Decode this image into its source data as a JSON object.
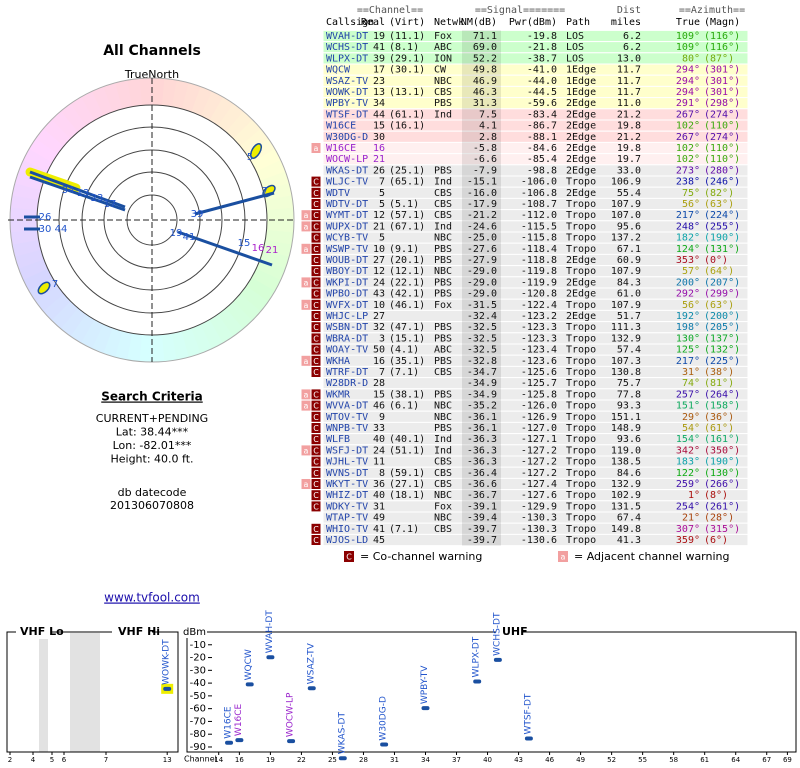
{
  "radar": {
    "title": "All Channels",
    "north": "TrueNorth",
    "north_mark": "N",
    "labels": [
      "5",
      "7",
      "34",
      "13",
      "23",
      "17",
      "26",
      "30",
      "44",
      "39",
      "19",
      "41",
      "15",
      "16",
      "21",
      "7"
    ]
  },
  "search": {
    "title": "Search Criteria",
    "lines": [
      "CURRENT+PENDING",
      "Lat: 38.44***",
      "Lon: -82.01***",
      "Height: 40.0 ft."
    ],
    "datecode_label": "db datecode",
    "datecode": "201306070808"
  },
  "table": {
    "group_headers": [
      "==Channel==",
      "==Signal=======",
      "Dist",
      "==Azimuth=="
    ],
    "headers": [
      "Callsign",
      "Real",
      "(Virt)",
      "Netwk",
      "NM(dB)",
      "Pwr(dBm)",
      "Path",
      "miles",
      "True",
      "(Magn)"
    ],
    "rows": [
      {
        "cells": [
          "WVAH-DT",
          "19",
          "(11.1)",
          "Fox",
          "71.1",
          "-19.8",
          "LOS",
          "6.2",
          "109°",
          "(116°)"
        ]
      },
      {
        "cells": [
          "WCHS-DT",
          "41",
          "(8.1)",
          "ABC",
          "69.0",
          "-21.8",
          "LOS",
          "6.2",
          "109°",
          "(116°)"
        ]
      },
      {
        "cells": [
          "WLPX-DT",
          "39",
          "(29.1)",
          "ION",
          "52.2",
          "-38.7",
          "LOS",
          "13.0",
          "80°",
          "(87°)"
        ]
      },
      {
        "cells": [
          "WQCW",
          "17",
          "(30.1)",
          "CW",
          "49.8",
          "-41.0",
          "1Edge",
          "11.7",
          "294°",
          "(301°)"
        ]
      },
      {
        "cells": [
          "WSAZ-TV",
          "23",
          null,
          "NBC",
          "46.9",
          "-44.0",
          "1Edge",
          "11.7",
          "294°",
          "(301°)"
        ]
      },
      {
        "cells": [
          "WOWK-DT",
          "13",
          "(13.1)",
          "CBS",
          "46.3",
          "-44.5",
          "1Edge",
          "11.7",
          "294°",
          "(301°)"
        ]
      },
      {
        "cells": [
          "WPBY-TV",
          "34",
          null,
          "PBS",
          "31.3",
          "-59.6",
          "2Edge",
          "11.0",
          "291°",
          "(298°)"
        ]
      },
      {
        "cells": [
          "WTSF-DT",
          "44",
          "(61.1)",
          "Ind",
          "7.5",
          "-83.4",
          "2Edge",
          "21.2",
          "267°",
          "(274°)"
        ]
      },
      {
        "cells": [
          "W16CE",
          "15",
          "(16.1)",
          null,
          "4.1",
          "-86.7",
          "2Edge",
          "19.8",
          "102°",
          "(110°)"
        ]
      },
      {
        "cells": [
          "W30DG-D",
          "30",
          null,
          null,
          "2.8",
          "-88.1",
          "2Edge",
          "21.2",
          "267°",
          "(274°)"
        ]
      },
      {
        "warn": [
          "a"
        ],
        "cells": [
          "W16CE",
          "16",
          null,
          null,
          "-5.8",
          "-84.6",
          "2Edge",
          "19.8",
          "102°",
          "(110°)"
        ]
      },
      {
        "cells": [
          "WOCW-LP",
          "21",
          null,
          null,
          "-6.6",
          "-85.4",
          "2Edge",
          "19.7",
          "102°",
          "(110°)"
        ]
      },
      {
        "cells": [
          "WKAS-DT",
          "26",
          "(25.1)",
          "PBS",
          "-7.9",
          "-98.8",
          "2Edge",
          "33.0",
          "273°",
          "(280°)"
        ]
      },
      {
        "warn": [
          "C"
        ],
        "cells": [
          "WLJC-TV",
          "7",
          "(65.1)",
          "Ind",
          "-15.1",
          "-106.0",
          "Tropo",
          "106.9",
          "238°",
          "(246°)"
        ]
      },
      {
        "warn": [
          "C"
        ],
        "cells": [
          "WDTV",
          "5",
          null,
          "CBS",
          "-16.0",
          "-106.8",
          "2Edge",
          "55.4",
          "75°",
          "(82°)"
        ]
      },
      {
        "warn": [
          "C"
        ],
        "cells": [
          "WDTV-DT",
          "5",
          "(5.1)",
          "CBS",
          "-17.9",
          "-108.7",
          "Tropo",
          "107.9",
          "56°",
          "(63°)"
        ]
      },
      {
        "warn": [
          "a",
          "C"
        ],
        "cells": [
          "WYMT-DT",
          "12",
          "(57.1)",
          "CBS",
          "-21.2",
          "-112.0",
          "Tropo",
          "107.0",
          "217°",
          "(224°)"
        ]
      },
      {
        "warn": [
          "a",
          "C"
        ],
        "cells": [
          "WUPX-DT",
          "21",
          "(67.1)",
          "Ind",
          "-24.6",
          "-115.5",
          "Tropo",
          "95.6",
          "248°",
          "(255°)"
        ]
      },
      {
        "warn": [
          "C"
        ],
        "cells": [
          "WCYB-TV",
          "5",
          null,
          "NBC",
          "-25.0",
          "-115.8",
          "Tropo",
          "137.2",
          "182°",
          "(190°)"
        ]
      },
      {
        "warn": [
          "a",
          "C"
        ],
        "cells": [
          "WSWP-TV",
          "10",
          "(9.1)",
          "PBS",
          "-27.6",
          "-118.4",
          "Tropo",
          "67.1",
          "124°",
          "(131°)"
        ]
      },
      {
        "warn": [
          "C"
        ],
        "cells": [
          "WOUB-DT",
          "27",
          "(20.1)",
          "PBS",
          "-27.9",
          "-118.8",
          "2Edge",
          "60.9",
          "353°",
          "(0°)"
        ]
      },
      {
        "warn": [
          "C"
        ],
        "cells": [
          "WBOY-DT",
          "12",
          "(12.1)",
          "NBC",
          "-29.0",
          "-119.8",
          "Tropo",
          "107.9",
          "57°",
          "(64°)"
        ]
      },
      {
        "warn": [
          "a",
          "C"
        ],
        "cells": [
          "WKPI-DT",
          "24",
          "(22.1)",
          "PBS",
          "-29.0",
          "-119.9",
          "2Edge",
          "84.3",
          "200°",
          "(207°)"
        ]
      },
      {
        "warn": [
          "C"
        ],
        "cells": [
          "WPBO-DT",
          "43",
          "(42.1)",
          "PBS",
          "-29.0",
          "-120.8",
          "2Edge",
          "61.0",
          "292°",
          "(299°)"
        ]
      },
      {
        "warn": [
          "a",
          "C"
        ],
        "cells": [
          "WVFX-DT",
          "10",
          "(46.1)",
          "Fox",
          "-31.5",
          "-122.4",
          "Tropo",
          "107.9",
          "56°",
          "(63°)"
        ]
      },
      {
        "warn": [
          "C"
        ],
        "cells": [
          "WHJC-LP",
          "27",
          null,
          null,
          "-32.4",
          "-123.2",
          "2Edge",
          "51.7",
          "192°",
          "(200°)"
        ]
      },
      {
        "warn": [
          "C"
        ],
        "cells": [
          "WSBN-DT",
          "32",
          "(47.1)",
          "PBS",
          "-32.5",
          "-123.3",
          "Tropo",
          "111.3",
          "198°",
          "(205°)"
        ]
      },
      {
        "warn": [
          "C"
        ],
        "cells": [
          "WBRA-DT",
          "3",
          "(15.1)",
          "PBS",
          "-32.5",
          "-123.3",
          "Tropo",
          "132.9",
          "130°",
          "(137°)"
        ]
      },
      {
        "warn": [
          "C"
        ],
        "cells": [
          "WOAY-TV",
          "50",
          "(4.1)",
          "ABC",
          "-32.5",
          "-123.4",
          "Tropo",
          "57.4",
          "125°",
          "(132°)"
        ]
      },
      {
        "warn": [
          "a",
          "C"
        ],
        "cells": [
          "WKHA",
          "16",
          "(35.1)",
          "PBS",
          "-32.8",
          "-123.6",
          "Tropo",
          "107.3",
          "217°",
          "(225°)"
        ]
      },
      {
        "warn": [
          "C"
        ],
        "cells": [
          "WTRF-DT",
          "7",
          "(7.1)",
          "CBS",
          "-34.7",
          "-125.6",
          "Tropo",
          "130.8",
          "31°",
          "(38°)"
        ]
      },
      {
        "cells": [
          "W28DR-D",
          "28",
          null,
          null,
          "-34.9",
          "-125.7",
          "Tropo",
          "75.7",
          "74°",
          "(81°)"
        ]
      },
      {
        "warn": [
          "a",
          "C"
        ],
        "cells": [
          "WKMR",
          "15",
          "(38.1)",
          "PBS",
          "-34.9",
          "-125.8",
          "Tropo",
          "77.8",
          "257°",
          "(264°)"
        ]
      },
      {
        "warn": [
          "a",
          "C"
        ],
        "cells": [
          "WVVA-DT",
          "46",
          "(6.1)",
          "NBC",
          "-35.2",
          "-126.0",
          "Tropo",
          "93.3",
          "151°",
          "(158°)"
        ]
      },
      {
        "warn": [
          "C"
        ],
        "cells": [
          "WTOV-TV",
          "9",
          null,
          "NBC",
          "-36.1",
          "-126.9",
          "Tropo",
          "151.1",
          "29°",
          "(36°)"
        ]
      },
      {
        "warn": [
          "C"
        ],
        "cells": [
          "WNPB-TV",
          "33",
          null,
          "PBS",
          "-36.1",
          "-127.0",
          "Tropo",
          "148.9",
          "54°",
          "(61°)"
        ]
      },
      {
        "warn": [
          "C"
        ],
        "cells": [
          "WLFB",
          "40",
          "(40.1)",
          "Ind",
          "-36.3",
          "-127.1",
          "Tropo",
          "93.6",
          "154°",
          "(161°)"
        ]
      },
      {
        "warn": [
          "a",
          "C"
        ],
        "cells": [
          "WSFJ-DT",
          "24",
          "(51.1)",
          "Ind",
          "-36.3",
          "-127.2",
          "Tropo",
          "119.0",
          "342°",
          "(350°)"
        ]
      },
      {
        "warn": [
          "C"
        ],
        "cells": [
          "WJHL-TV",
          "11",
          null,
          "CBS",
          "-36.3",
          "-127.2",
          "Tropo",
          "138.5",
          "183°",
          "(190°)"
        ]
      },
      {
        "warn": [
          "C"
        ],
        "cells": [
          "WVNS-DT",
          "8",
          "(59.1)",
          "CBS",
          "-36.4",
          "-127.2",
          "Tropo",
          "84.6",
          "122°",
          "(130°)"
        ]
      },
      {
        "warn": [
          "a",
          "C"
        ],
        "cells": [
          "WKYT-TV",
          "36",
          "(27.1)",
          "CBS",
          "-36.6",
          "-127.4",
          "Tropo",
          "132.9",
          "259°",
          "(266°)"
        ]
      },
      {
        "warn": [
          "C"
        ],
        "cells": [
          "WHIZ-DT",
          "40",
          "(18.1)",
          "NBC",
          "-36.7",
          "-127.6",
          "Tropo",
          "102.9",
          "1°",
          "(8°)"
        ]
      },
      {
        "warn": [
          "C"
        ],
        "cells": [
          "WDKY-TV",
          "31",
          null,
          "Fox",
          "-39.1",
          "-129.9",
          "Tropo",
          "131.5",
          "254°",
          "(261°)"
        ]
      },
      {
        "cells": [
          "WTAP-TV",
          "49",
          null,
          "NBC",
          "-39.4",
          "-130.3",
          "Tropo",
          "67.4",
          "21°",
          "(28°)"
        ]
      },
      {
        "warn": [
          "C"
        ],
        "cells": [
          "WHIO-TV",
          "41",
          "(7.1)",
          "CBS",
          "-39.7",
          "-130.3",
          "Tropo",
          "149.8",
          "307°",
          "(315°)"
        ]
      },
      {
        "warn": [
          "C"
        ],
        "cells": [
          "WJOS-LD",
          "45",
          null,
          null,
          "-39.7",
          "-130.6",
          "Tropo",
          "41.3",
          "359°",
          "(6°)"
        ]
      }
    ]
  },
  "legend": {
    "cochannel": {
      "badge": "C",
      "text": "= Co-channel warning"
    },
    "adjacent": {
      "badge": "a",
      "text": "= Adjacent channel warning"
    }
  },
  "link": "www.tvfool.com",
  "chart_data": {
    "type": "spectrum",
    "y_label": "dBm",
    "x_label": "Channel",
    "band_labels": [
      "VHF Lo",
      "VHF Hi",
      "UHF"
    ],
    "ylim": [
      -100,
      0
    ],
    "yticks": [
      -10,
      -20,
      -30,
      -40,
      -50,
      -60,
      -70,
      -80,
      -90
    ],
    "xticks": [
      2,
      4,
      5,
      6,
      7,
      13,
      14,
      16,
      19,
      22,
      25,
      28,
      31,
      34,
      37,
      40,
      43,
      46,
      49,
      52,
      55,
      58,
      61,
      64,
      67,
      69
    ],
    "labels": [
      "WOWK-DT",
      "W16CE",
      "W16CE",
      "WQCW",
      "WVAH-DT",
      "WOCW-LP",
      "WSAZ-TV",
      "WKAS-DT",
      "W30DG-D",
      "WPBY-TV",
      "WLPX-DT",
      "WCHS-DT",
      "WTSF-DT"
    ],
    "x": [
      13,
      15,
      16,
      17,
      19,
      21,
      23,
      26,
      30,
      34,
      39,
      41,
      44
    ],
    "values": [
      -44.5,
      -86.7,
      -84.6,
      -41.0,
      -19.8,
      -85.4,
      -44.0,
      -98.8,
      -88.1,
      -59.6,
      -38.7,
      -21.8,
      -83.4
    ],
    "colors": [
      "#2255cc",
      "#2255cc",
      "#9922cc",
      "#2255cc",
      "#2255cc",
      "#9922cc",
      "#2255cc",
      "#2255cc",
      "#2255cc",
      "#2255cc",
      "#2255cc",
      "#2255cc",
      "#2255cc"
    ],
    "marker_color": "#1a4fa0",
    "highlighted": [
      "WOWK-DT"
    ],
    "highlight_color": "#eeee00"
  }
}
